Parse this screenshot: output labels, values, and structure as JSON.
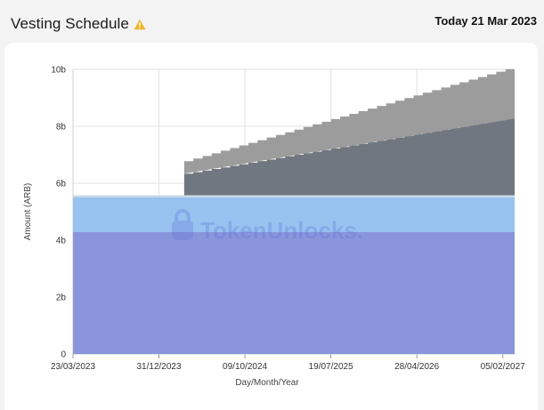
{
  "header": {
    "title": "Vesting Schedule",
    "date_label": "Today 21 Mar 2023"
  },
  "icons": {
    "warning": "warning-icon",
    "watermark": "tokenunlocks-logo-icon"
  },
  "watermark": {
    "text": "TokenUnlocks."
  },
  "chart_data": {
    "type": "area",
    "stacked": true,
    "xlabel": "Day/Month/Year",
    "ylabel": "Amount (ARB)",
    "x_ticks": [
      "23/03/2023",
      "31/12/2023",
      "09/10/2024",
      "19/07/2025",
      "28/04/2026",
      "05/02/2027"
    ],
    "x_range": [
      "23/03/2023",
      "16/03/2027"
    ],
    "y_ticks": [
      "0",
      "2b",
      "4b",
      "6b",
      "8b",
      "10b"
    ],
    "ylim": [
      0,
      10
    ],
    "y_unit": "billion ARB",
    "grid": true,
    "series": [
      {
        "color": "#8a95dc",
        "values_desc": "constant",
        "start": 4.28,
        "end": 4.28
      },
      {
        "color": "#98c2f0",
        "start": 1.22,
        "end": 1.22
      },
      {
        "color": "#c9d9e6",
        "start": 0.08,
        "end": 0.08
      },
      {
        "color": "#717780",
        "cliff_date": "23/03/2024",
        "cliff_value": 0.7,
        "end": 2.69
      },
      {
        "color": "#9c9c9c",
        "cliff_date": "23/03/2024",
        "cliff_value": 0.4,
        "end": 1.74
      }
    ],
    "total_end": 10.0,
    "steps_after_cliff": 36
  }
}
